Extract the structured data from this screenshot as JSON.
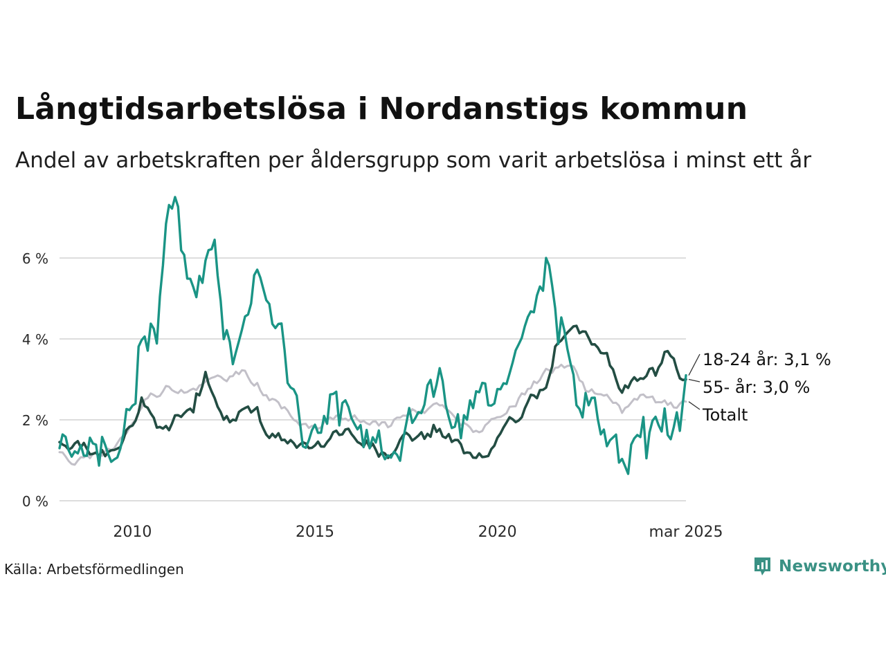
{
  "title": "Långtidsarbetslösa i Nordanstigs kommun",
  "subtitle": "Andel av arbetskraften per åldersgrupp som varit arbetslösa i minst ett år",
  "source": "Källa: Arbetsförmedlingen",
  "brand": "Newsworthy",
  "colors": {
    "series_18_24": "#1a9485",
    "series_55": "#234d43",
    "series_total": "#c2c0c8",
    "grid": "#dddddd",
    "brand": "#3a9184"
  },
  "chart_data": {
    "type": "line",
    "title": "Långtidsarbetslösa i Nordanstigs kommun",
    "subtitle": "Andel av arbetskraften per åldersgrupp som varit arbetslösa i minst ett år",
    "xlim": [
      "2008-01",
      "2025-03"
    ],
    "ylim": [
      0,
      7.5
    ],
    "y_ticks": [
      {
        "value": 0,
        "label": "0 %"
      },
      {
        "value": 2,
        "label": "2 %"
      },
      {
        "value": 4,
        "label": "4 %"
      },
      {
        "value": 6,
        "label": "6 %"
      }
    ],
    "x_ticks": [
      {
        "value": "2010-01",
        "label": "2010"
      },
      {
        "value": "2015-01",
        "label": "2015"
      },
      {
        "value": "2020-01",
        "label": "2020"
      },
      {
        "value": "2025-03",
        "label": "mar 2025"
      }
    ],
    "grid": true,
    "legend": "direct labels at line ends",
    "series": [
      {
        "key": "total",
        "end_label": "Totalt",
        "color": "#c2c0c8",
        "points": [
          [
            "2008-01",
            1.2
          ],
          [
            "2008-06",
            0.95
          ],
          [
            "2009-01",
            1.1
          ],
          [
            "2009-06",
            1.3
          ],
          [
            "2010-01",
            1.9
          ],
          [
            "2010-06",
            2.6
          ],
          [
            "2011-01",
            2.8
          ],
          [
            "2011-06",
            2.75
          ],
          [
            "2012-01",
            2.9
          ],
          [
            "2012-06",
            3.05
          ],
          [
            "2013-01",
            3.15
          ],
          [
            "2013-06",
            2.9
          ],
          [
            "2014-01",
            2.3
          ],
          [
            "2014-06",
            2.1
          ],
          [
            "2015-01",
            1.75
          ],
          [
            "2015-06",
            2.0
          ],
          [
            "2016-01",
            2.05
          ],
          [
            "2016-06",
            1.95
          ],
          [
            "2017-01",
            1.85
          ],
          [
            "2017-06",
            2.2
          ],
          [
            "2018-01",
            2.25
          ],
          [
            "2018-06",
            2.35
          ],
          [
            "2019-01",
            1.9
          ],
          [
            "2019-06",
            1.75
          ],
          [
            "2020-01",
            1.95
          ],
          [
            "2020-06",
            2.3
          ],
          [
            "2021-01",
            2.9
          ],
          [
            "2021-06",
            3.2
          ],
          [
            "2022-01",
            3.4
          ],
          [
            "2022-06",
            2.8
          ],
          [
            "2023-01",
            2.5
          ],
          [
            "2023-06",
            2.2
          ],
          [
            "2024-01",
            2.6
          ],
          [
            "2024-06",
            2.4
          ],
          [
            "2025-01",
            2.35
          ],
          [
            "2025-03",
            2.45
          ]
        ]
      },
      {
        "key": "55",
        "end_label": "55- år: 3,0 %",
        "color": "#234d43",
        "points": [
          [
            "2008-01",
            1.45
          ],
          [
            "2008-06",
            1.35
          ],
          [
            "2009-01",
            1.2
          ],
          [
            "2009-06",
            1.2
          ],
          [
            "2010-01",
            1.9
          ],
          [
            "2010-04",
            2.55
          ],
          [
            "2010-09",
            1.95
          ],
          [
            "2011-01",
            1.8
          ],
          [
            "2011-03",
            2.3
          ],
          [
            "2011-09",
            2.3
          ],
          [
            "2012-01",
            3.1
          ],
          [
            "2012-06",
            2.2
          ],
          [
            "2012-10",
            1.9
          ],
          [
            "2013-01",
            2.2
          ],
          [
            "2013-06",
            2.3
          ],
          [
            "2013-10",
            1.6
          ],
          [
            "2014-06",
            1.5
          ],
          [
            "2015-01",
            1.3
          ],
          [
            "2015-06",
            1.6
          ],
          [
            "2016-01",
            1.7
          ],
          [
            "2016-06",
            1.5
          ],
          [
            "2017-01",
            1.05
          ],
          [
            "2017-06",
            1.5
          ],
          [
            "2018-01",
            1.6
          ],
          [
            "2018-06",
            1.75
          ],
          [
            "2019-01",
            1.3
          ],
          [
            "2019-06",
            1.05
          ],
          [
            "2020-01",
            1.5
          ],
          [
            "2020-06",
            1.95
          ],
          [
            "2021-01",
            2.55
          ],
          [
            "2021-06",
            3.0
          ],
          [
            "2021-11",
            4.3
          ],
          [
            "2022-06",
            4.0
          ],
          [
            "2023-01",
            3.7
          ],
          [
            "2023-06",
            2.7
          ],
          [
            "2024-01",
            3.2
          ],
          [
            "2024-06",
            3.5
          ],
          [
            "2024-09",
            3.8
          ],
          [
            "2025-01",
            3.1
          ],
          [
            "2025-03",
            3.0
          ]
        ]
      },
      {
        "key": "18-24",
        "end_label": "18-24 år: 3,1 %",
        "color": "#1a9485",
        "points": [
          [
            "2008-01",
            1.3
          ],
          [
            "2008-06",
            0.9
          ],
          [
            "2008-10",
            1.3
          ],
          [
            "2009-01",
            1.65
          ],
          [
            "2009-06",
            1.1
          ],
          [
            "2009-09",
            1.7
          ],
          [
            "2009-12",
            2.6
          ],
          [
            "2010-03",
            3.9
          ],
          [
            "2010-06",
            4.05
          ],
          [
            "2010-09",
            4.0
          ],
          [
            "2010-12",
            6.8
          ],
          [
            "2011-03",
            7.25
          ],
          [
            "2011-06",
            5.7
          ],
          [
            "2011-09",
            5.0
          ],
          [
            "2012-01",
            5.8
          ],
          [
            "2012-04",
            6.25
          ],
          [
            "2012-07",
            4.3
          ],
          [
            "2012-11",
            3.6
          ],
          [
            "2013-03",
            4.4
          ],
          [
            "2013-06",
            5.6
          ],
          [
            "2013-09",
            4.8
          ],
          [
            "2014-01",
            4.3
          ],
          [
            "2014-06",
            2.8
          ],
          [
            "2014-10",
            1.5
          ],
          [
            "2015-01",
            1.5
          ],
          [
            "2015-06",
            2.5
          ],
          [
            "2016-01",
            1.9
          ],
          [
            "2016-06",
            1.5
          ],
          [
            "2017-01",
            1.2
          ],
          [
            "2017-06",
            1.6
          ],
          [
            "2018-01",
            2.5
          ],
          [
            "2018-06",
            2.9
          ],
          [
            "2019-01",
            1.7
          ],
          [
            "2019-06",
            2.9
          ],
          [
            "2020-01",
            2.5
          ],
          [
            "2020-06",
            3.5
          ],
          [
            "2021-01",
            5.2
          ],
          [
            "2021-06",
            5.95
          ],
          [
            "2021-11",
            4.2
          ],
          [
            "2022-03",
            2.2
          ],
          [
            "2022-09",
            2.8
          ],
          [
            "2023-01",
            1.5
          ],
          [
            "2023-06",
            0.85
          ],
          [
            "2024-01",
            1.8
          ],
          [
            "2024-06",
            1.9
          ],
          [
            "2024-09",
            1.4
          ],
          [
            "2025-01",
            1.7
          ],
          [
            "2025-03",
            3.1
          ]
        ]
      }
    ]
  }
}
